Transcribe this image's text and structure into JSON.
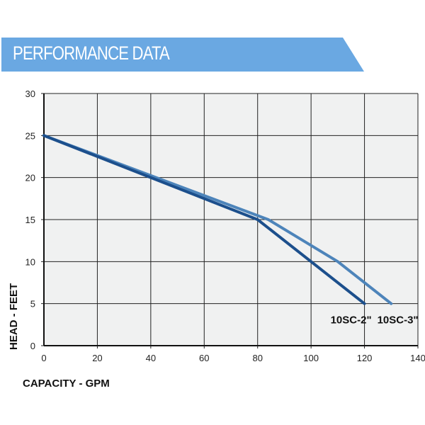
{
  "header": {
    "title": "PERFORMANCE DATA",
    "color": "#6aa8e2"
  },
  "chart_data": {
    "type": "line",
    "title": "PERFORMANCE DATA",
    "xlabel": "CAPACITY - GPM",
    "ylabel": "HEAD - FEET",
    "xlim": [
      0,
      140
    ],
    "ylim": [
      0,
      30
    ],
    "xticks": [
      0,
      20,
      40,
      60,
      80,
      100,
      120,
      140
    ],
    "yticks": [
      0,
      5,
      10,
      15,
      20,
      25,
      30
    ],
    "grid": true,
    "series": [
      {
        "name": "10SC-2\"",
        "color": "#1c4f8c",
        "x": [
          0,
          80,
          120
        ],
        "y": [
          25,
          15,
          5
        ]
      },
      {
        "name": "10SC-3\"",
        "color": "#4d84ba",
        "x": [
          0,
          84,
          110,
          130
        ],
        "y": [
          25,
          15,
          10,
          5
        ]
      }
    ]
  }
}
